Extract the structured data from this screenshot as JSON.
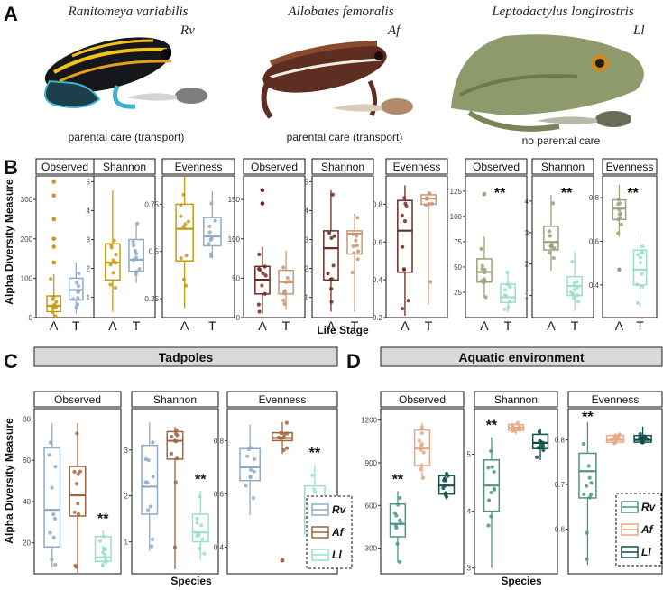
{
  "panel_letters": {
    "A": "A",
    "B": "B",
    "C": "C",
    "D": "D"
  },
  "panel_a": {
    "species": [
      {
        "name": "Ranitomeya variabilis",
        "abbr": "Rv",
        "care": "parental care (transport)"
      },
      {
        "name": "Allobates femoralis",
        "abbr": "Af",
        "care": "parental care (transport)"
      },
      {
        "name": "Leptodactylus longirostris",
        "abbr": "Ll",
        "care": "no parental care"
      }
    ]
  },
  "panel_b": {
    "ylabel": "Alpha Diversity Measure",
    "xlabel": "Life Stage"
  },
  "panel_c": {
    "title": "Tadpoles",
    "ylabel": "Alpha Diversity Measure",
    "xlabel": "Species",
    "legend": [
      "Rv",
      "Af",
      "Ll"
    ]
  },
  "panel_d": {
    "title": "Aquatic environment",
    "xlabel": "Species",
    "legend": [
      "Rv",
      "Af",
      "Ll"
    ]
  },
  "colors": {
    "rv_adult": "#c49a12",
    "rv_tadpole": "#8eabc7",
    "af_adult": "#6e2a20",
    "af_tadpole": "#c99773",
    "ll_adult": "#9ba37a",
    "ll_tadpole": "#9adfc8",
    "c_rv": "#8eabc7",
    "c_af": "#a0653e",
    "c_ll": "#9adfc8",
    "d_rv": "#4f9487",
    "d_af": "#e8a785",
    "d_ll": "#124f4a"
  },
  "chart_data": [
    {
      "id": "B-Rv-Observed",
      "type": "box",
      "title": "Observed",
      "categories": [
        "A",
        "T"
      ],
      "ylim": [
        0,
        360
      ],
      "yticks": [
        0,
        100,
        200,
        300
      ],
      "series": [
        {
          "name": "A",
          "min": 0,
          "q1": 15,
          "median": 30,
          "q3": 55,
          "max": 110,
          "outliers": [
            140,
            180,
            200,
            250,
            310,
            345
          ]
        },
        {
          "name": "T",
          "min": 10,
          "q1": 45,
          "median": 70,
          "q3": 100,
          "max": 140,
          "outliers": []
        }
      ]
    },
    {
      "id": "B-Rv-Shannon",
      "type": "box",
      "title": "Shannon",
      "categories": [
        "A",
        "T"
      ],
      "ylim": [
        0.3,
        5.2
      ],
      "yticks": [
        1,
        2,
        3,
        4,
        5
      ],
      "series": [
        {
          "name": "A",
          "min": 0.5,
          "q1": 1.6,
          "median": 2.2,
          "q3": 2.85,
          "max": 4.7,
          "outliers": []
        },
        {
          "name": "T",
          "min": 1.5,
          "q1": 1.9,
          "median": 2.3,
          "q3": 3.0,
          "max": 3.6,
          "outliers": []
        }
      ]
    },
    {
      "id": "B-Rv-Evenness",
      "type": "box",
      "title": "Evenness",
      "categories": [
        "A",
        "T"
      ],
      "ylim": [
        0.15,
        0.9
      ],
      "yticks": [
        0.25,
        0.5,
        0.75
      ],
      "series": [
        {
          "name": "A",
          "min": 0.2,
          "q1": 0.45,
          "median": 0.62,
          "q3": 0.75,
          "max": 0.9,
          "outliers": []
        },
        {
          "name": "T",
          "min": 0.47,
          "q1": 0.53,
          "median": 0.58,
          "q3": 0.68,
          "max": 0.82,
          "outliers": []
        }
      ]
    },
    {
      "id": "B-Af-Observed",
      "type": "box",
      "title": "Observed",
      "categories": [
        "A",
        "T"
      ],
      "ylim": [
        0,
        180
      ],
      "yticks": [
        0,
        50,
        100,
        150
      ],
      "series": [
        {
          "name": "A",
          "min": 5,
          "q1": 30,
          "median": 48,
          "q3": 65,
          "max": 90,
          "outliers": [
            145,
            162
          ]
        },
        {
          "name": "T",
          "min": 10,
          "q1": 30,
          "median": 45,
          "q3": 60,
          "max": 85,
          "outliers": []
        }
      ]
    },
    {
      "id": "B-Af-Shannon",
      "type": "box",
      "title": "Shannon",
      "categories": [
        "A",
        "T"
      ],
      "ylim": [
        0.3,
        5.2
      ],
      "yticks": [
        1,
        2,
        3,
        4,
        5
      ],
      "series": [
        {
          "name": "A",
          "min": 0.5,
          "q1": 1.6,
          "median": 2.7,
          "q3": 3.3,
          "max": 4.7,
          "outliers": []
        },
        {
          "name": "T",
          "min": 0.5,
          "q1": 2.5,
          "median": 3.2,
          "q3": 3.3,
          "max": 3.9,
          "outliers": []
        }
      ]
    },
    {
      "id": "B-Af-Evenness",
      "type": "box",
      "title": "Evenness",
      "categories": [
        "A",
        "T"
      ],
      "ylim": [
        0.2,
        0.95
      ],
      "yticks": [
        0.2,
        0.4,
        0.6,
        0.8
      ],
      "series": [
        {
          "name": "A",
          "min": 0.21,
          "q1": 0.44,
          "median": 0.66,
          "q3": 0.82,
          "max": 0.9,
          "outliers": []
        },
        {
          "name": "T",
          "min": 0.27,
          "q1": 0.8,
          "median": 0.83,
          "q3": 0.85,
          "max": 0.87,
          "outliers": []
        }
      ]
    },
    {
      "id": "B-Ll-Observed",
      "type": "box",
      "title": "Observed",
      "categories": [
        "A",
        "T"
      ],
      "ylim": [
        0,
        140
      ],
      "yticks": [
        25,
        50,
        75,
        100,
        125
      ],
      "annotation": "**",
      "series": [
        {
          "name": "A",
          "min": 20,
          "q1": 35,
          "median": 45,
          "q3": 58,
          "max": 80,
          "outliers": [
            122
          ]
        },
        {
          "name": "T",
          "min": 5,
          "q1": 15,
          "median": 20,
          "q3": 33,
          "max": 45,
          "outliers": []
        }
      ]
    },
    {
      "id": "B-Ll-Shannon",
      "type": "box",
      "title": "Shannon",
      "categories": [
        "A",
        "T"
      ],
      "ylim": [
        0.3,
        4.8
      ],
      "yticks": [
        1,
        2,
        3,
        4
      ],
      "annotation": "**",
      "series": [
        {
          "name": "A",
          "min": 1.8,
          "q1": 2.45,
          "median": 2.7,
          "q3": 3.2,
          "max": 4.2,
          "outliers": []
        },
        {
          "name": "T",
          "min": 0.5,
          "q1": 1.0,
          "median": 1.3,
          "q3": 1.6,
          "max": 2.4,
          "outliers": []
        }
      ]
    },
    {
      "id": "B-Ll-Evenness",
      "type": "box",
      "title": "Evenness",
      "categories": [
        "A",
        "T"
      ],
      "ylim": [
        0.25,
        0.9
      ],
      "yticks": [
        0.4,
        0.6,
        0.8
      ],
      "annotation": "**",
      "series": [
        {
          "name": "A",
          "min": 0.62,
          "q1": 0.7,
          "median": 0.75,
          "q3": 0.79,
          "max": 0.86,
          "outliers": [
            0.47
          ]
        },
        {
          "name": "T",
          "min": 0.3,
          "q1": 0.4,
          "median": 0.47,
          "q3": 0.56,
          "max": 0.64,
          "outliers": []
        }
      ]
    },
    {
      "id": "C-Observed",
      "type": "box",
      "title": "Observed",
      "categories": [
        "Rv",
        "Af",
        "Ll"
      ],
      "ylim": [
        5,
        85
      ],
      "yticks": [
        20,
        40,
        60,
        80
      ],
      "annotation": "**",
      "series": [
        {
          "name": "Rv",
          "min": 8,
          "q1": 18,
          "median": 36,
          "q3": 66,
          "max": 78,
          "outliers": []
        },
        {
          "name": "Af",
          "min": 5,
          "q1": 33,
          "median": 43,
          "q3": 57,
          "max": 78,
          "outliers": []
        },
        {
          "name": "Ll",
          "min": 8,
          "q1": 11,
          "median": 13,
          "q3": 23,
          "max": 26,
          "outliers": []
        }
      ]
    },
    {
      "id": "C-Shannon",
      "type": "box",
      "title": "Shannon",
      "categories": [
        "Rv",
        "Af",
        "Ll"
      ],
      "ylim": [
        0.3,
        3.9
      ],
      "yticks": [
        1,
        2,
        3
      ],
      "annotation": "**",
      "series": [
        {
          "name": "Rv",
          "min": 0.8,
          "q1": 1.6,
          "median": 2.2,
          "q3": 3.1,
          "max": 3.6,
          "outliers": []
        },
        {
          "name": "Af",
          "min": 0.4,
          "q1": 2.8,
          "median": 3.2,
          "q3": 3.4,
          "max": 3.5,
          "outliers": []
        },
        {
          "name": "Ll",
          "min": 0.6,
          "q1": 1.0,
          "median": 1.2,
          "q3": 1.6,
          "max": 2.1,
          "outliers": []
        }
      ]
    },
    {
      "id": "C-Evenness",
      "type": "box",
      "title": "Evenness",
      "categories": [
        "Rv",
        "Af",
        "Ll"
      ],
      "ylim": [
        0.3,
        0.92
      ],
      "yticks": [
        0.4,
        0.6,
        0.8
      ],
      "annotation": "**",
      "series": [
        {
          "name": "Rv",
          "min": 0.52,
          "q1": 0.65,
          "median": 0.7,
          "q3": 0.77,
          "max": 0.86,
          "outliers": []
        },
        {
          "name": "Af",
          "min": 0.75,
          "q1": 0.8,
          "median": 0.81,
          "q3": 0.83,
          "max": 0.87,
          "outliers": [
            0.35
          ]
        },
        {
          "name": "Ll",
          "min": 0.36,
          "q1": 0.45,
          "median": 0.51,
          "q3": 0.63,
          "max": 0.71,
          "outliers": []
        }
      ]
    },
    {
      "id": "D-Observed",
      "type": "box",
      "title": "Observed",
      "categories": [
        "Rv",
        "Af",
        "Ll"
      ],
      "ylim": [
        120,
        1280
      ],
      "yticks": [
        300,
        600,
        900,
        1200
      ],
      "annotation": "**",
      "series": [
        {
          "name": "Rv",
          "min": 200,
          "q1": 380,
          "median": 470,
          "q3": 610,
          "max": 700,
          "outliers": []
        },
        {
          "name": "Af",
          "min": 780,
          "q1": 880,
          "median": 1000,
          "q3": 1130,
          "max": 1180,
          "outliers": []
        },
        {
          "name": "Ll",
          "min": 640,
          "q1": 680,
          "median": 740,
          "q3": 810,
          "max": 830,
          "outliers": []
        }
      ]
    },
    {
      "id": "D-Shannon",
      "type": "box",
      "title": "Shannon",
      "categories": [
        "Rv",
        "Af",
        "Ll"
      ],
      "ylim": [
        2.9,
        5.8
      ],
      "yticks": [
        3,
        4,
        5
      ],
      "annotation": "**",
      "series": [
        {
          "name": "Rv",
          "min": 3.0,
          "q1": 4.0,
          "median": 4.45,
          "q3": 4.9,
          "max": 5.3,
          "outliers": []
        },
        {
          "name": "Af",
          "min": 5.35,
          "q1": 5.42,
          "median": 5.47,
          "q3": 5.52,
          "max": 5.55,
          "outliers": []
        },
        {
          "name": "Ll",
          "min": 4.9,
          "q1": 5.1,
          "median": 5.2,
          "q3": 5.35,
          "max": 5.45,
          "outliers": []
        }
      ]
    },
    {
      "id": "D-Evenness",
      "type": "box",
      "title": "Evenness",
      "categories": [
        "Rv",
        "Af",
        "Ll"
      ],
      "ylim": [
        0.5,
        0.87
      ],
      "yticks": [
        0.6,
        0.7,
        0.8
      ],
      "annotation": "**",
      "series": [
        {
          "name": "Rv",
          "min": 0.52,
          "q1": 0.67,
          "median": 0.73,
          "q3": 0.77,
          "max": 0.84,
          "outliers": []
        },
        {
          "name": "Af",
          "min": 0.79,
          "q1": 0.795,
          "median": 0.8,
          "q3": 0.81,
          "max": 0.815,
          "outliers": []
        },
        {
          "name": "Ll",
          "min": 0.79,
          "q1": 0.795,
          "median": 0.8,
          "q3": 0.81,
          "max": 0.83,
          "outliers": []
        }
      ]
    }
  ]
}
